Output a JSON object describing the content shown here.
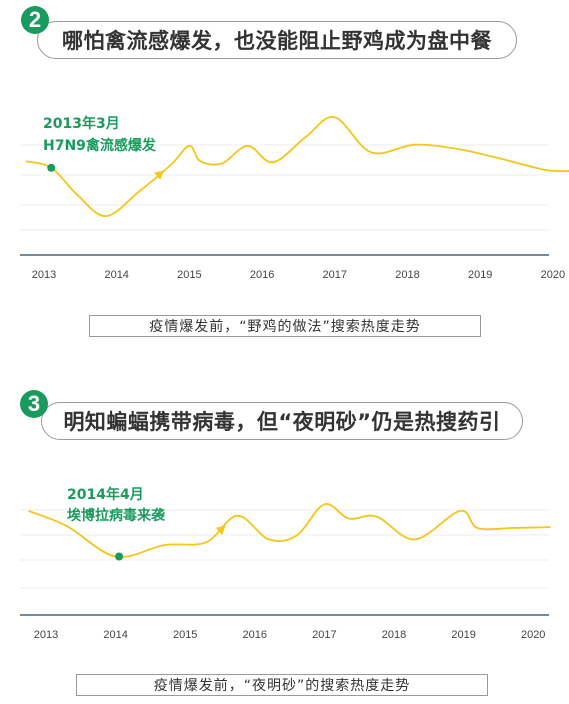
{
  "colors": {
    "line": "#f5c518",
    "accent_green": "#1a9b5e",
    "axis": "#4a6478",
    "grid": "#eeeeee"
  },
  "sections": [
    {
      "number": "2",
      "title": "哪怕禽流感爆发，也没能阻止野鸡成为盘中餐",
      "annotation_line1": "2013年3月",
      "annotation_line2": "H7N9禽流感爆发",
      "caption": "疫情爆发前，“野鸡的做法”搜索热度走势"
    },
    {
      "number": "3",
      "title": "明知蝙蝠携带病毒，但“夜明砂”仍是热搜药引",
      "annotation_line1": "2014年4月",
      "annotation_line2": "埃博拉病毒来袭",
      "caption": "疫情爆发前，“夜明砂”的搜索热度走势"
    }
  ],
  "chart_data": [
    {
      "type": "line",
      "x_ticks": [
        "2013",
        "2014",
        "2015",
        "2016",
        "2017",
        "2018",
        "2019",
        "2020"
      ],
      "y_axis_labeled": false,
      "grid": true,
      "points": [
        {
          "x": 2012.75,
          "y": 58
        },
        {
          "x": 2013.1,
          "y": 52
        },
        {
          "x": 2013.45,
          "y": 28
        },
        {
          "x": 2013.85,
          "y": 8
        },
        {
          "x": 2014.3,
          "y": 30
        },
        {
          "x": 2014.75,
          "y": 55
        },
        {
          "x": 2015.0,
          "y": 72
        },
        {
          "x": 2015.15,
          "y": 58
        },
        {
          "x": 2015.45,
          "y": 56
        },
        {
          "x": 2015.8,
          "y": 72
        },
        {
          "x": 2016.15,
          "y": 57
        },
        {
          "x": 2016.6,
          "y": 80
        },
        {
          "x": 2017.0,
          "y": 98
        },
        {
          "x": 2017.5,
          "y": 66
        },
        {
          "x": 2018.1,
          "y": 73
        },
        {
          "x": 2018.7,
          "y": 69
        },
        {
          "x": 2019.3,
          "y": 60
        },
        {
          "x": 2019.9,
          "y": 50
        },
        {
          "x": 2020.25,
          "y": 49
        }
      ],
      "event_marker": {
        "x": 2013.1,
        "y": 52
      }
    },
    {
      "type": "line",
      "x_ticks": [
        "2013",
        "2014",
        "2015",
        "2016",
        "2017",
        "2018",
        "2019",
        "2020"
      ],
      "y_axis_labeled": false,
      "grid": true,
      "points": [
        {
          "x": 2012.75,
          "y": 78
        },
        {
          "x": 2013.3,
          "y": 62
        },
        {
          "x": 2014.0,
          "y": 30
        },
        {
          "x": 2014.7,
          "y": 42
        },
        {
          "x": 2015.3,
          "y": 45
        },
        {
          "x": 2015.75,
          "y": 73
        },
        {
          "x": 2016.2,
          "y": 48
        },
        {
          "x": 2016.6,
          "y": 52
        },
        {
          "x": 2017.0,
          "y": 85
        },
        {
          "x": 2017.35,
          "y": 70
        },
        {
          "x": 2017.75,
          "y": 72
        },
        {
          "x": 2018.3,
          "y": 48
        },
        {
          "x": 2018.95,
          "y": 78
        },
        {
          "x": 2019.2,
          "y": 60
        },
        {
          "x": 2019.7,
          "y": 60
        },
        {
          "x": 2020.25,
          "y": 61
        }
      ],
      "event_marker": {
        "x": 2014.05,
        "y": 30
      }
    }
  ]
}
